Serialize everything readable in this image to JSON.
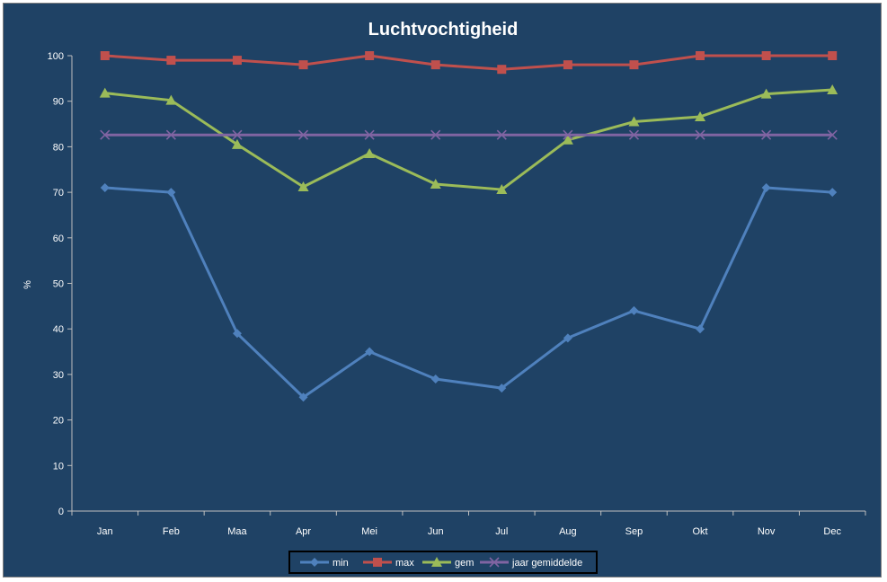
{
  "chart_data": {
    "type": "line",
    "title": "Luchtvochtigheid",
    "ylabel": "%",
    "xlabel": "",
    "ylim": [
      0,
      100
    ],
    "yticks": [
      0,
      10,
      20,
      30,
      40,
      50,
      60,
      70,
      80,
      90,
      100
    ],
    "categories": [
      "Jan",
      "Feb",
      "Maa",
      "Apr",
      "Mei",
      "Jun",
      "Jul",
      "Aug",
      "Sep",
      "Okt",
      "Nov",
      "Dec"
    ],
    "grid": false,
    "legend_position": "bottom",
    "series": [
      {
        "name": "min",
        "color": "#4f81bd",
        "marker": "diamond",
        "values": [
          71,
          70,
          39,
          25,
          35,
          29,
          27,
          38,
          44,
          40,
          71,
          70
        ]
      },
      {
        "name": "max",
        "color": "#c0504d",
        "marker": "square",
        "values": [
          100,
          99,
          99,
          98,
          100,
          98,
          97,
          98,
          98,
          100,
          100,
          100
        ]
      },
      {
        "name": "gem",
        "color": "#9bbb59",
        "marker": "triangle",
        "values": [
          91.8,
          90.2,
          80.5,
          71.2,
          78.5,
          71.8,
          70.6,
          81.5,
          85.5,
          86.6,
          91.6,
          92.5
        ]
      },
      {
        "name": "jaar gemiddelde",
        "color": "#8064a2",
        "marker": "x",
        "values": [
          82.6,
          82.6,
          82.6,
          82.6,
          82.6,
          82.6,
          82.6,
          82.6,
          82.6,
          82.6,
          82.6,
          82.6
        ]
      }
    ]
  },
  "colors": {
    "background": "#1f4265",
    "axis": "#bfbfbf",
    "text": "#ffffff"
  }
}
